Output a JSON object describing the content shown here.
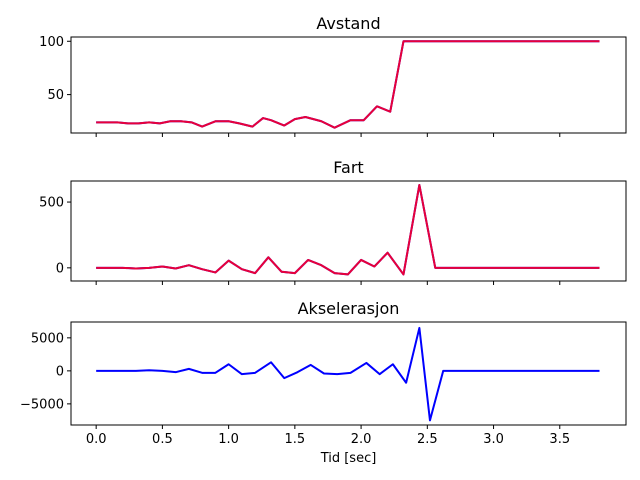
{
  "chart_data": [
    {
      "type": "line",
      "title": "Avstand",
      "xlabel": "",
      "ylabel": "",
      "xlim": [
        -0.19,
        4.0
      ],
      "ylim": [
        14,
        104
      ],
      "xticks": [
        0.0,
        0.5,
        1.0,
        1.5,
        2.0,
        2.5,
        3.0,
        3.5
      ],
      "xtick_labels_visible": false,
      "yticks": [
        50,
        100
      ],
      "ytick_labels": [
        "50",
        "100"
      ],
      "x": [
        0.0,
        0.08,
        0.16,
        0.24,
        0.32,
        0.4,
        0.48,
        0.56,
        0.64,
        0.72,
        0.8,
        0.9,
        1.0,
        1.08,
        1.18,
        1.26,
        1.32,
        1.42,
        1.5,
        1.58,
        1.7,
        1.8,
        1.92,
        2.02,
        2.12,
        2.22,
        2.32,
        2.44,
        2.52,
        3.0,
        3.5,
        3.8
      ],
      "series": [
        {
          "color": "#0000ff",
          "values": [
            24,
            24,
            24,
            23,
            23,
            24,
            23,
            25,
            25,
            24,
            20,
            25,
            25,
            23,
            20,
            28,
            26,
            21,
            27,
            29,
            25,
            19,
            26,
            26,
            39,
            34,
            100,
            100,
            100,
            100,
            100,
            100
          ]
        },
        {
          "color": "#e8003a",
          "values": [
            24,
            24,
            24,
            23,
            23,
            24,
            23,
            25,
            25,
            24,
            20,
            25,
            25,
            23,
            20,
            28,
            26,
            21,
            27,
            29,
            25,
            19,
            26,
            26,
            39,
            34,
            100,
            100,
            100,
            100,
            100,
            100
          ]
        }
      ]
    },
    {
      "type": "line",
      "title": "Fart",
      "xlabel": "",
      "ylabel": "",
      "xlim": [
        -0.19,
        4.0
      ],
      "ylim": [
        -100,
        660
      ],
      "xticks": [
        0.0,
        0.5,
        1.0,
        1.5,
        2.0,
        2.5,
        3.0,
        3.5
      ],
      "xtick_labels_visible": false,
      "yticks": [
        0,
        500
      ],
      "ytick_labels": [
        "0",
        "500"
      ],
      "x": [
        0.0,
        0.1,
        0.2,
        0.3,
        0.4,
        0.5,
        0.6,
        0.7,
        0.8,
        0.9,
        1.0,
        1.1,
        1.2,
        1.3,
        1.4,
        1.5,
        1.6,
        1.7,
        1.8,
        1.9,
        2.0,
        2.1,
        2.2,
        2.32,
        2.44,
        2.56,
        3.0,
        3.5,
        3.8
      ],
      "series": [
        {
          "color": "#0000ff",
          "values": [
            0,
            0,
            0,
            -5,
            0,
            10,
            -5,
            20,
            -10,
            -35,
            55,
            -10,
            -40,
            80,
            -30,
            -40,
            60,
            20,
            -40,
            -50,
            60,
            10,
            115,
            -50,
            630,
            0,
            0,
            0,
            0
          ]
        },
        {
          "color": "#e8003a",
          "values": [
            0,
            0,
            0,
            -5,
            0,
            10,
            -5,
            20,
            -10,
            -35,
            55,
            -10,
            -40,
            80,
            -30,
            -40,
            60,
            20,
            -40,
            -50,
            60,
            10,
            115,
            -50,
            630,
            0,
            0,
            0,
            0
          ]
        }
      ]
    },
    {
      "type": "line",
      "title": "Akselerasjon",
      "xlabel": "Tid [sec]",
      "ylabel": "",
      "xlim": [
        -0.19,
        4.0
      ],
      "ylim": [
        -8200,
        7400
      ],
      "xticks": [
        0.0,
        0.5,
        1.0,
        1.5,
        2.0,
        2.5,
        3.0,
        3.5
      ],
      "xtick_labels_visible": true,
      "xtick_labels": [
        "0.0",
        "0.5",
        "1.0",
        "1.5",
        "2.0",
        "2.5",
        "3.0",
        "3.5"
      ],
      "yticks": [
        -5000,
        0,
        5000
      ],
      "ytick_labels": [
        "−5000",
        "0",
        "5000"
      ],
      "x": [
        0.0,
        0.1,
        0.2,
        0.3,
        0.4,
        0.5,
        0.6,
        0.7,
        0.8,
        0.9,
        1.0,
        1.1,
        1.2,
        1.32,
        1.42,
        1.52,
        1.62,
        1.72,
        1.82,
        1.92,
        2.04,
        2.14,
        2.24,
        2.34,
        2.44,
        2.52,
        2.62,
        3.0,
        3.5,
        3.8
      ],
      "series": [
        {
          "color": "#0000ff",
          "values": [
            0,
            0,
            0,
            0,
            100,
            0,
            -200,
            300,
            -300,
            -300,
            1000,
            -500,
            -300,
            1300,
            -1100,
            -200,
            900,
            -400,
            -500,
            -300,
            1200,
            -500,
            1000,
            -1800,
            6500,
            -7500,
            0,
            0,
            0,
            0
          ]
        }
      ]
    }
  ]
}
